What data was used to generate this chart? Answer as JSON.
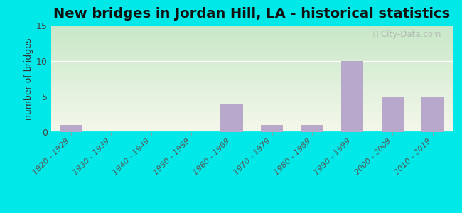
{
  "title": "New bridges in Jordan Hill, LA - historical statistics",
  "categories": [
    "1920 - 1929",
    "1930 - 1939",
    "1940 - 1949",
    "1950 - 1959",
    "1960 - 1969",
    "1970 - 1979",
    "1980 - 1989",
    "1990 - 1999",
    "2000 - 2009",
    "2010 - 2019"
  ],
  "values": [
    1,
    0,
    0,
    0,
    4,
    1,
    1,
    10,
    5,
    5
  ],
  "bar_color": "#b8a9cc",
  "ylabel": "number of bridges",
  "ylim": [
    0,
    15
  ],
  "yticks": [
    0,
    5,
    10,
    15
  ],
  "background_outer": "#00e8e8",
  "watermark": "City-Data.com",
  "title_fontsize": 14,
  "label_fontsize": 8,
  "ylabel_fontsize": 9,
  "gradient_top": "#c8e8c8",
  "gradient_bottom": "#f0f0e8"
}
